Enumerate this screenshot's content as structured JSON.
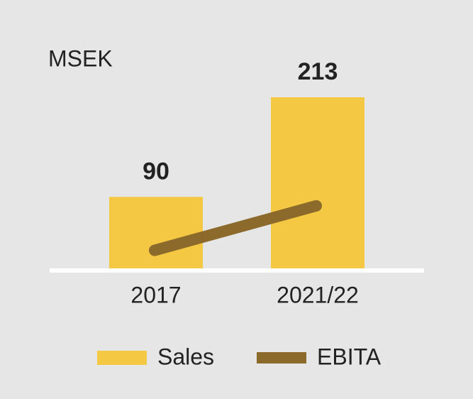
{
  "chart_data": {
    "type": "bar",
    "unit_label": "MSEK",
    "categories": [
      "2017",
      "2021/22"
    ],
    "series": [
      {
        "name": "Sales",
        "type": "bar",
        "color": "#f4c842",
        "values": [
          90,
          213
        ],
        "data_labels": true
      },
      {
        "name": "EBITA",
        "type": "line",
        "color": "#8c6a2c",
        "values": [
          24,
          79
        ]
      }
    ],
    "legend": "bottom"
  }
}
